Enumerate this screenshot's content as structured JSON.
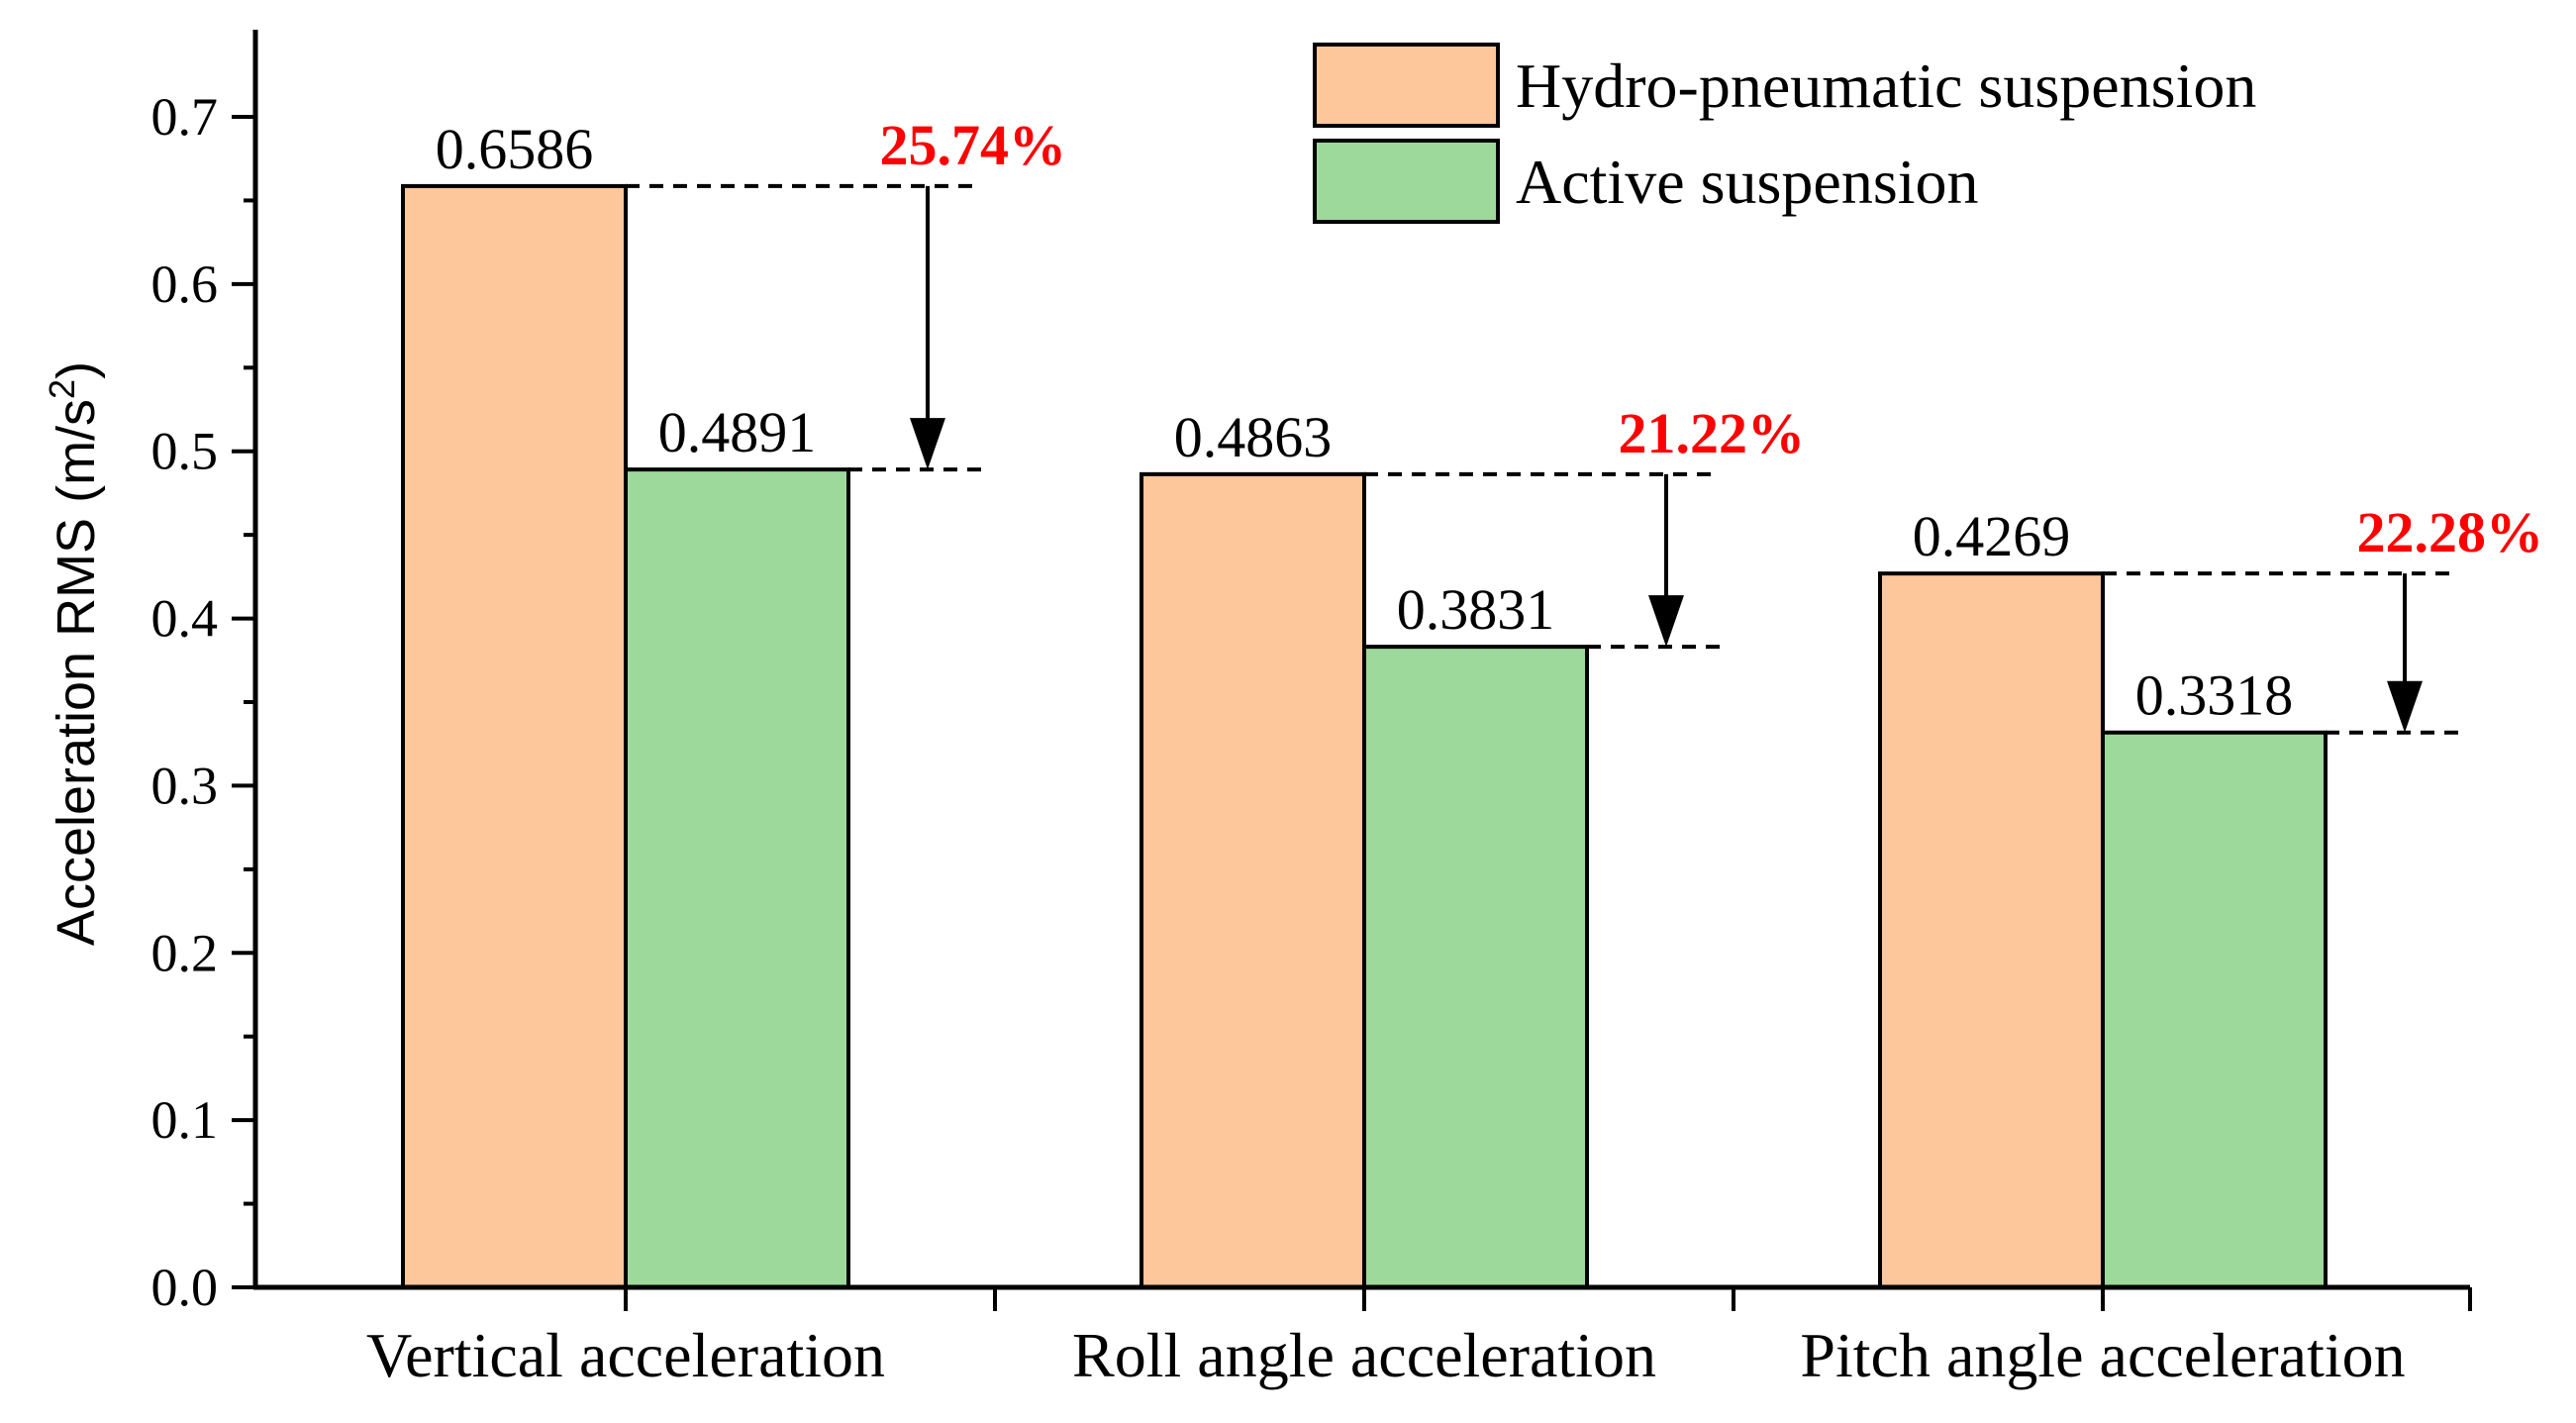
{
  "chart_data": {
    "type": "bar",
    "title": "",
    "xlabel": "",
    "ylabel": "Acceleration RMS (m/s",
    "ylabel_sup": "2",
    "ylabel_close": ")",
    "ylim": [
      0,
      0.75
    ],
    "yticks": [
      "0.0",
      "0.1",
      "0.2",
      "0.3",
      "0.4",
      "0.5",
      "0.6",
      "0.7"
    ],
    "categories": [
      "Vertical acceleration",
      "Roll angle acceleration",
      "Pitch angle acceleration"
    ],
    "series": [
      {
        "name": "Hydro-pneumatic suspension",
        "color": "#fdc69b",
        "values": [
          0.6586,
          0.4863,
          0.4269
        ],
        "labels": [
          "0.6586",
          "0.4863",
          "0.4269"
        ]
      },
      {
        "name": "Active suspension",
        "color": "#9dd99b",
        "values": [
          0.4891,
          0.3831,
          0.3318
        ],
        "labels": [
          "0.4891",
          "0.3831",
          "0.3318"
        ]
      }
    ],
    "reductions": [
      "25.74%",
      "21.22%",
      "22.28%"
    ],
    "reduction_color": "#ff0000",
    "legend_position": "top-right"
  }
}
